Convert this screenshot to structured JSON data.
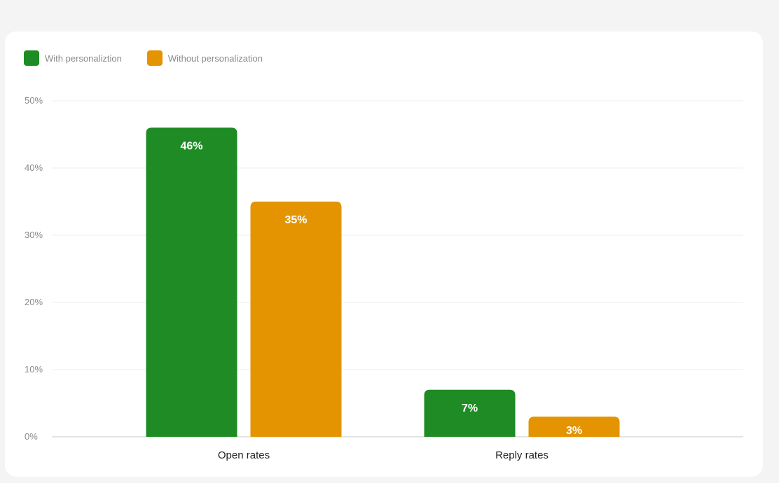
{
  "legend": [
    {
      "label": "With personaliztion",
      "color": "#1e8b24"
    },
    {
      "label": "Without personalization",
      "color": "#e39400"
    }
  ],
  "chart_data": {
    "type": "bar",
    "categories": [
      "Open rates",
      "Reply rates"
    ],
    "series": [
      {
        "name": "With personaliztion",
        "values": [
          46,
          7
        ],
        "color": "#1e8b24"
      },
      {
        "name": "Without personalization",
        "values": [
          35,
          3
        ],
        "color": "#e39400"
      }
    ],
    "value_labels": [
      [
        "46%",
        "7%"
      ],
      [
        "35%",
        "3%"
      ]
    ],
    "ylim": [
      0,
      50
    ],
    "yticks": [
      0,
      10,
      20,
      30,
      40,
      50
    ],
    "ytick_labels": [
      "0%",
      "10%",
      "20%",
      "30%",
      "40%",
      "50%"
    ],
    "grid": true,
    "legend_position": "top-left"
  }
}
